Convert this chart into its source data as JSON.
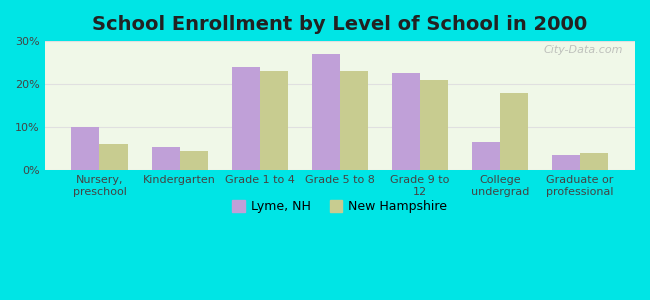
{
  "title": "School Enrollment by Level of School in 2000",
  "categories": [
    "Nursery,\npreschool",
    "Kindergarten",
    "Grade 1 to 4",
    "Grade 5 to 8",
    "Grade 9 to\n12",
    "College\nundergrad",
    "Graduate or\nprofessional"
  ],
  "lyme_values": [
    10.0,
    5.5,
    24.0,
    27.0,
    22.5,
    6.5,
    3.5
  ],
  "nh_values": [
    6.0,
    4.5,
    23.0,
    23.0,
    21.0,
    18.0,
    4.0
  ],
  "lyme_color": "#c0a0d8",
  "nh_color": "#c8cc90",
  "background_color": "#00e5e5",
  "plot_bg_start": "#f0f8e8",
  "plot_bg_end": "#ffffff",
  "ylim": [
    0,
    30
  ],
  "yticks": [
    0,
    10,
    20,
    30
  ],
  "ytick_labels": [
    "0%",
    "10%",
    "20%",
    "30%"
  ],
  "grid_color": "#e0e0e0",
  "title_fontsize": 14,
  "tick_fontsize": 8,
  "legend_label_lyme": "Lyme, NH",
  "legend_label_nh": "New Hampshire",
  "watermark": "City-Data.com"
}
